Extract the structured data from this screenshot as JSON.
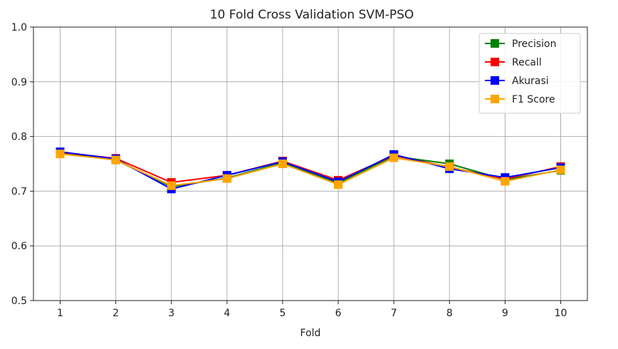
{
  "chart_data": {
    "type": "line",
    "title": "10 Fold Cross Validation SVM-PSO",
    "xlabel": "Fold",
    "ylabel": "",
    "x": [
      1,
      2,
      3,
      4,
      5,
      6,
      7,
      8,
      9,
      10
    ],
    "xticks": [
      "1",
      "2",
      "3",
      "4",
      "5",
      "6",
      "7",
      "8",
      "9",
      "10"
    ],
    "ylim": [
      0.5,
      1.0
    ],
    "yticks": [
      "0.5",
      "0.6",
      "0.7",
      "0.8",
      "0.9",
      "1.0"
    ],
    "grid": true,
    "legend_position": "top-right",
    "series": [
      {
        "name": "Precision",
        "color": "#008000",
        "values": [
          0.77,
          0.757,
          0.708,
          0.724,
          0.752,
          0.715,
          0.764,
          0.75,
          0.721,
          0.738
        ]
      },
      {
        "name": "Recall",
        "color": "#ff0000",
        "values": [
          0.771,
          0.76,
          0.716,
          0.729,
          0.755,
          0.72,
          0.765,
          0.744,
          0.722,
          0.745
        ]
      },
      {
        "name": "Akurasi",
        "color": "#0000ff",
        "values": [
          0.772,
          0.759,
          0.704,
          0.729,
          0.754,
          0.717,
          0.767,
          0.741,
          0.725,
          0.743
        ]
      },
      {
        "name": "F1 Score",
        "color": "#ffa500",
        "values": [
          0.768,
          0.757,
          0.71,
          0.723,
          0.75,
          0.712,
          0.761,
          0.745,
          0.718,
          0.739
        ]
      }
    ]
  }
}
